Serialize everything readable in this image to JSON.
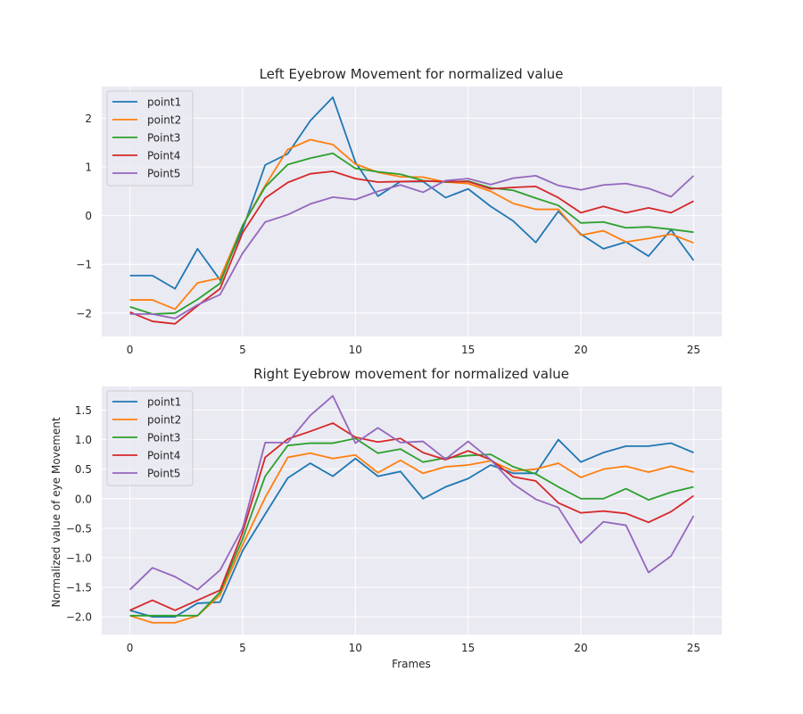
{
  "theme": {
    "plot_bg": "#eaeaf2",
    "grid": "#ffffff",
    "text": "#262626",
    "colors": [
      "#1f77b4",
      "#ff7f0e",
      "#2ca02c",
      "#d62728",
      "#9467bd"
    ]
  },
  "chart_data": [
    {
      "type": "line",
      "title": "Left Eyebrow Movement for normalized value",
      "xlabel": "",
      "ylabel": "",
      "xlim": [
        -1.25,
        26.25
      ],
      "ylim": [
        -2.48,
        2.65
      ],
      "xticks": [
        0,
        5,
        10,
        15,
        20,
        25
      ],
      "yticks": [
        -2,
        -1,
        0,
        1,
        2
      ],
      "grid": true,
      "legend_position": "top-left",
      "x": [
        0,
        1,
        2,
        3,
        4,
        5,
        6,
        7,
        8,
        9,
        10,
        11,
        12,
        13,
        14,
        15,
        16,
        17,
        18,
        19,
        20,
        21,
        22,
        23,
        24,
        25
      ],
      "series": [
        {
          "name": "point1",
          "values": [
            -1.23,
            -1.23,
            -1.5,
            -0.68,
            -1.32,
            -0.28,
            1.04,
            1.27,
            1.95,
            2.43,
            1.1,
            0.4,
            0.7,
            0.7,
            0.37,
            0.55,
            0.19,
            -0.11,
            -0.55,
            0.09,
            -0.38,
            -0.68,
            -0.54,
            -0.83,
            -0.29,
            -0.92
          ]
        },
        {
          "name": "point2",
          "values": [
            -1.73,
            -1.73,
            -1.92,
            -1.38,
            -1.28,
            -0.2,
            0.62,
            1.36,
            1.56,
            1.46,
            1.06,
            0.89,
            0.8,
            0.79,
            0.69,
            0.66,
            0.5,
            0.25,
            0.13,
            0.13,
            -0.4,
            -0.31,
            -0.54,
            -0.47,
            -0.38,
            -0.56
          ]
        },
        {
          "name": "Point3",
          "values": [
            -1.87,
            -2.02,
            -2.0,
            -1.72,
            -1.39,
            -0.2,
            0.59,
            1.05,
            1.18,
            1.28,
            0.97,
            0.9,
            0.85,
            0.72,
            0.69,
            0.71,
            0.57,
            0.52,
            0.36,
            0.21,
            -0.15,
            -0.13,
            -0.25,
            -0.23,
            -0.28,
            -0.34
          ]
        },
        {
          "name": "Point4",
          "values": [
            -1.98,
            -2.17,
            -2.22,
            -1.85,
            -1.5,
            -0.35,
            0.36,
            0.68,
            0.86,
            0.91,
            0.76,
            0.69,
            0.7,
            0.71,
            0.7,
            0.7,
            0.55,
            0.58,
            0.6,
            0.37,
            0.06,
            0.19,
            0.06,
            0.16,
            0.06,
            0.3
          ]
        },
        {
          "name": "Point5",
          "values": [
            -2.02,
            -2.02,
            -2.11,
            -1.83,
            -1.62,
            -0.77,
            -0.13,
            0.02,
            0.24,
            0.38,
            0.33,
            0.5,
            0.63,
            0.48,
            0.72,
            0.76,
            0.64,
            0.77,
            0.82,
            0.62,
            0.53,
            0.63,
            0.66,
            0.56,
            0.39,
            0.82
          ]
        }
      ]
    },
    {
      "type": "line",
      "title": "Right Eyebrow movement for normalized value",
      "xlabel": "Frames",
      "ylabel": "Normalized value of eye Movement",
      "xlim": [
        -1.25,
        26.25
      ],
      "ylim": [
        -2.3,
        1.9
      ],
      "xticks": [
        0,
        5,
        10,
        15,
        20,
        25
      ],
      "yticks": [
        -2.0,
        -1.5,
        -1.0,
        -0.5,
        0.0,
        0.5,
        1.0,
        1.5
      ],
      "grid": true,
      "legend_position": "top-left",
      "x": [
        0,
        1,
        2,
        3,
        4,
        5,
        6,
        7,
        8,
        9,
        10,
        11,
        12,
        13,
        14,
        15,
        16,
        17,
        18,
        19,
        20,
        21,
        22,
        23,
        24,
        25
      ],
      "series": [
        {
          "name": "point1",
          "values": [
            -1.89,
            -2.0,
            -2.0,
            -1.77,
            -1.75,
            -0.88,
            -0.26,
            0.35,
            0.6,
            0.38,
            0.68,
            0.38,
            0.46,
            0.0,
            0.2,
            0.34,
            0.57,
            0.43,
            0.43,
            1.0,
            0.62,
            0.78,
            0.89,
            0.89,
            0.94,
            0.78
          ]
        },
        {
          "name": "point2",
          "values": [
            -1.98,
            -2.1,
            -2.1,
            -1.98,
            -1.63,
            -0.78,
            0.02,
            0.7,
            0.77,
            0.68,
            0.74,
            0.44,
            0.65,
            0.43,
            0.54,
            0.57,
            0.64,
            0.47,
            0.5,
            0.6,
            0.36,
            0.5,
            0.55,
            0.45,
            0.55,
            0.45
          ]
        },
        {
          "name": "Point3",
          "values": [
            -1.98,
            -1.98,
            -1.98,
            -1.98,
            -1.58,
            -0.68,
            0.38,
            0.9,
            0.94,
            0.94,
            1.02,
            0.77,
            0.84,
            0.62,
            0.69,
            0.73,
            0.75,
            0.54,
            0.42,
            0.2,
            0.0,
            0.0,
            0.17,
            -0.02,
            0.11,
            0.2
          ]
        },
        {
          "name": "Point4",
          "values": [
            -1.89,
            -1.72,
            -1.89,
            -1.72,
            -1.55,
            -0.57,
            0.7,
            1.01,
            1.14,
            1.28,
            1.04,
            0.96,
            1.02,
            0.78,
            0.66,
            0.81,
            0.66,
            0.37,
            0.3,
            -0.07,
            -0.24,
            -0.21,
            -0.25,
            -0.4,
            -0.22,
            0.05
          ]
        },
        {
          "name": "Point5",
          "values": [
            -1.54,
            -1.17,
            -1.32,
            -1.54,
            -1.21,
            -0.5,
            0.95,
            0.95,
            1.41,
            1.74,
            0.94,
            1.2,
            0.95,
            0.97,
            0.67,
            0.97,
            0.66,
            0.25,
            -0.01,
            -0.15,
            -0.75,
            -0.39,
            -0.45,
            -1.25,
            -0.97,
            -0.29
          ]
        }
      ]
    }
  ]
}
